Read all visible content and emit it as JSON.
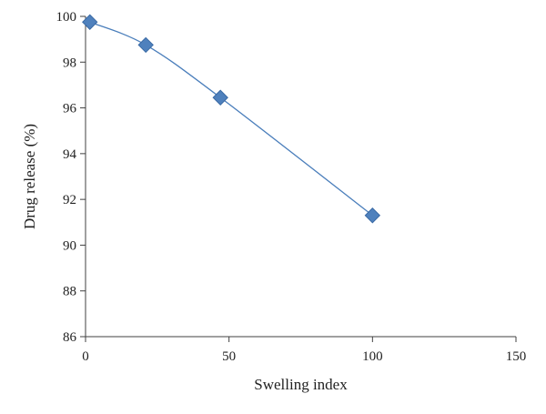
{
  "colors": {
    "series_line": "#4a7ebb",
    "marker_fill": "#4f81bd",
    "marker_stroke": "#3a6aa5"
  },
  "chart_data": {
    "type": "scatter",
    "title": "",
    "xlabel": "Swelling index",
    "ylabel": "Drug release (%)",
    "xlim": [
      0,
      150
    ],
    "ylim": [
      86,
      100
    ],
    "xticks": [
      0,
      50,
      100,
      150
    ],
    "yticks": [
      86,
      88,
      90,
      92,
      94,
      96,
      98,
      100
    ],
    "grid": false,
    "legend": "none",
    "line_style": "smooth",
    "marker": "diamond",
    "series": [
      {
        "points": [
          {
            "x": 1.5,
            "y": 99.75
          },
          {
            "x": 21,
            "y": 98.75
          },
          {
            "x": 47,
            "y": 96.45
          },
          {
            "x": 100,
            "y": 91.3
          }
        ]
      }
    ]
  }
}
